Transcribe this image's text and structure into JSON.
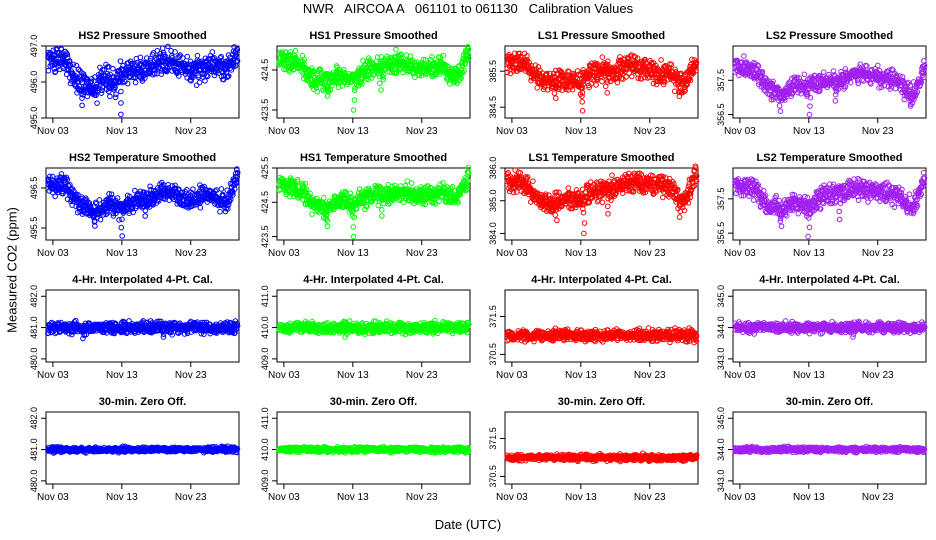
{
  "figure": {
    "title": "NWR   AIRCOA A   061101 to 061130   Calibration Values",
    "xlabel": "Date (UTC)",
    "ylabel": "Measured CO2 (ppm)"
  },
  "colors": {
    "HS2": "#0000ff",
    "HS1": "#00ff00",
    "LS1": "#ff0000",
    "LS2": "#a020f0"
  },
  "chart_data": [
    {
      "type": "scatter",
      "row": 0,
      "col": 0,
      "title": "HS2 Pressure Smoothed",
      "color_key": "HS2",
      "xlim": [
        2,
        30
      ],
      "ylim": [
        495,
        497
      ],
      "yticks": [
        "495.0",
        "496.0",
        "497.0"
      ],
      "x_ticks": [
        {
          "value": 3,
          "label": "Nov 03"
        },
        {
          "value": 13,
          "label": "Nov 13"
        },
        {
          "value": 23,
          "label": "Nov 23"
        }
      ],
      "center": 496.3,
      "noise": 0.25,
      "x_range": [
        2.3,
        29.8
      ],
      "anchors": [
        [
          2.3,
          496.7
        ],
        [
          5,
          496.6
        ],
        [
          6,
          496.1
        ],
        [
          7.5,
          496.0
        ],
        [
          9,
          495.8
        ],
        [
          10.5,
          496.1
        ],
        [
          12,
          496.0
        ],
        [
          13.5,
          496.3
        ],
        [
          16,
          496.3
        ],
        [
          18,
          496.5
        ],
        [
          20,
          496.6
        ],
        [
          23,
          496.3
        ],
        [
          26,
          496.5
        ],
        [
          28,
          496.3
        ],
        [
          29.8,
          496.8
        ]
      ],
      "dips": [
        [
          7.2,
          495.35
        ],
        [
          12.8,
          495.1
        ],
        [
          11.2,
          495.6
        ]
      ]
    },
    {
      "type": "scatter",
      "row": 0,
      "col": 1,
      "title": "HS1 Pressure Smoothed",
      "color_key": "HS1",
      "xlim": [
        2,
        30
      ],
      "ylim": [
        423.3,
        425.1
      ],
      "yticks": [
        "423.5",
        "424.5"
      ],
      "x_ticks": [
        {
          "value": 3,
          "label": "Nov 03"
        },
        {
          "value": 13,
          "label": "Nov 13"
        },
        {
          "value": 23,
          "label": "Nov 23"
        }
      ],
      "center": 424.5,
      "noise": 0.2,
      "x_range": [
        2.3,
        29.8
      ],
      "anchors": [
        [
          2.3,
          424.8
        ],
        [
          5,
          424.7
        ],
        [
          7,
          424.3
        ],
        [
          9,
          424.2
        ],
        [
          11,
          424.4
        ],
        [
          13,
          424.3
        ],
        [
          15,
          424.5
        ],
        [
          18,
          424.6
        ],
        [
          20,
          424.7
        ],
        [
          23,
          424.5
        ],
        [
          26,
          424.6
        ],
        [
          28,
          424.3
        ],
        [
          29.8,
          424.9
        ]
      ],
      "dips": [
        [
          9.3,
          423.85
        ],
        [
          13.2,
          423.5
        ],
        [
          17,
          424.0
        ]
      ]
    },
    {
      "type": "scatter",
      "row": 0,
      "col": 2,
      "title": "LS1 Pressure Smoothed",
      "color_key": "LS1",
      "xlim": [
        2,
        30
      ],
      "ylim": [
        384.2,
        386.2
      ],
      "yticks": [
        "384.5",
        "385.5"
      ],
      "x_ticks": [
        {
          "value": 3,
          "label": "Nov 03"
        },
        {
          "value": 13,
          "label": "Nov 13"
        },
        {
          "value": 23,
          "label": "Nov 23"
        }
      ],
      "center": 385.4,
      "noise": 0.22,
      "x_range": [
        2.3,
        29.8
      ],
      "anchors": [
        [
          2.3,
          385.8
        ],
        [
          5,
          385.7
        ],
        [
          7,
          385.3
        ],
        [
          9,
          385.2
        ],
        [
          11,
          385.3
        ],
        [
          13,
          385.2
        ],
        [
          15,
          385.5
        ],
        [
          18,
          385.5
        ],
        [
          20,
          385.7
        ],
        [
          23,
          385.5
        ],
        [
          26,
          385.4
        ],
        [
          28,
          385.1
        ],
        [
          29.8,
          385.8
        ]
      ],
      "dips": [
        [
          9.3,
          384.75
        ],
        [
          13.2,
          384.4
        ],
        [
          16.7,
          384.9
        ],
        [
          27.4,
          384.8
        ]
      ]
    },
    {
      "type": "scatter",
      "row": 0,
      "col": 3,
      "title": "LS2 Pressure Smoothed",
      "color_key": "LS2",
      "xlim": [
        2,
        30
      ],
      "ylim": [
        356.4,
        358.5
      ],
      "yticks": [
        "356.5",
        "357.5"
      ],
      "x_ticks": [
        {
          "value": 3,
          "label": "Nov 03"
        },
        {
          "value": 13,
          "label": "Nov 13"
        },
        {
          "value": 23,
          "label": "Nov 23"
        }
      ],
      "center": 357.5,
      "noise": 0.2,
      "x_range": [
        2.3,
        29.8
      ],
      "anchors": [
        [
          2.3,
          357.9
        ],
        [
          5,
          357.8
        ],
        [
          7,
          357.3
        ],
        [
          9,
          357.1
        ],
        [
          11,
          357.4
        ],
        [
          13,
          357.3
        ],
        [
          15,
          357.5
        ],
        [
          18,
          357.5
        ],
        [
          20,
          357.7
        ],
        [
          23,
          357.6
        ],
        [
          26,
          357.5
        ],
        [
          28,
          357.0
        ],
        [
          29.8,
          357.9
        ]
      ],
      "dips": [
        [
          8.8,
          356.6
        ],
        [
          13.2,
          356.5
        ],
        [
          17,
          356.9
        ],
        [
          27.7,
          356.9
        ]
      ]
    },
    {
      "type": "scatter",
      "row": 1,
      "col": 0,
      "title": "HS2 Temperature Smoothed",
      "color_key": "HS2",
      "xlim": [
        2,
        30
      ],
      "ylim": [
        495.2,
        497.0
      ],
      "yticks": [
        "495.5",
        "496.5"
      ],
      "x_ticks": [
        {
          "value": 3,
          "label": "Nov 03"
        },
        {
          "value": 13,
          "label": "Nov 13"
        },
        {
          "value": 23,
          "label": "Nov 23"
        }
      ],
      "center": 496.2,
      "noise": 0.18,
      "x_range": [
        2.3,
        29.8
      ],
      "anchors": [
        [
          2.3,
          496.6
        ],
        [
          5,
          496.5
        ],
        [
          7,
          496.1
        ],
        [
          9,
          495.9
        ],
        [
          11,
          496.1
        ],
        [
          13,
          496.0
        ],
        [
          15,
          496.2
        ],
        [
          18,
          496.3
        ],
        [
          20,
          496.4
        ],
        [
          23,
          496.2
        ],
        [
          26,
          496.3
        ],
        [
          28,
          496.1
        ],
        [
          29.8,
          496.8
        ]
      ],
      "dips": [
        [
          9,
          495.55
        ],
        [
          13,
          495.3
        ],
        [
          16.5,
          495.8
        ]
      ]
    },
    {
      "type": "scatter",
      "row": 1,
      "col": 1,
      "title": "HS1 Temperature Smoothed",
      "color_key": "HS1",
      "xlim": [
        2,
        30
      ],
      "ylim": [
        423.4,
        425.5
      ],
      "yticks": [
        "423.5",
        "424.5",
        "425.5"
      ],
      "x_ticks": [
        {
          "value": 3,
          "label": "Nov 03"
        },
        {
          "value": 13,
          "label": "Nov 13"
        },
        {
          "value": 23,
          "label": "Nov 23"
        }
      ],
      "center": 424.7,
      "noise": 0.2,
      "x_range": [
        2.3,
        29.8
      ],
      "anchors": [
        [
          2.3,
          425.0
        ],
        [
          5,
          424.9
        ],
        [
          7,
          424.5
        ],
        [
          9,
          424.3
        ],
        [
          11,
          424.6
        ],
        [
          13,
          424.4
        ],
        [
          15,
          424.7
        ],
        [
          18,
          424.7
        ],
        [
          20,
          424.8
        ],
        [
          23,
          424.7
        ],
        [
          26,
          424.8
        ],
        [
          28,
          424.6
        ],
        [
          29.8,
          425.2
        ]
      ],
      "dips": [
        [
          9.2,
          423.8
        ],
        [
          13.2,
          423.5
        ],
        [
          17.3,
          424.1
        ]
      ]
    },
    {
      "type": "scatter",
      "row": 1,
      "col": 2,
      "title": "LS1 Temperature Smoothed",
      "color_key": "LS1",
      "xlim": [
        2,
        30
      ],
      "ylim": [
        383.8,
        386.0
      ],
      "yticks": [
        "384.0",
        "385.0",
        "386.0"
      ],
      "x_ticks": [
        {
          "value": 3,
          "label": "Nov 03"
        },
        {
          "value": 13,
          "label": "Nov 13"
        },
        {
          "value": 23,
          "label": "Nov 23"
        }
      ],
      "center": 385.2,
      "noise": 0.22,
      "x_range": [
        2.3,
        29.8
      ],
      "anchors": [
        [
          2.3,
          385.6
        ],
        [
          5,
          385.5
        ],
        [
          7,
          385.0
        ],
        [
          9,
          384.9
        ],
        [
          11,
          385.1
        ],
        [
          13,
          385.0
        ],
        [
          15,
          385.3
        ],
        [
          18,
          385.4
        ],
        [
          20,
          385.6
        ],
        [
          23,
          385.5
        ],
        [
          26,
          385.4
        ],
        [
          28,
          384.9
        ],
        [
          29.8,
          385.8
        ]
      ],
      "dips": [
        [
          9.4,
          384.4
        ],
        [
          13.4,
          384.0
        ],
        [
          17,
          384.6
        ],
        [
          27.3,
          384.5
        ]
      ]
    },
    {
      "type": "scatter",
      "row": 1,
      "col": 3,
      "title": "LS2 Temperature Smoothed",
      "color_key": "LS2",
      "xlim": [
        2,
        30
      ],
      "ylim": [
        356.3,
        358.4
      ],
      "yticks": [
        "356.5",
        "357.5"
      ],
      "x_ticks": [
        {
          "value": 3,
          "label": "Nov 03"
        },
        {
          "value": 13,
          "label": "Nov 13"
        },
        {
          "value": 23,
          "label": "Nov 23"
        }
      ],
      "center": 357.5,
      "noise": 0.2,
      "x_range": [
        2.3,
        29.8
      ],
      "anchors": [
        [
          2.3,
          357.9
        ],
        [
          5,
          357.8
        ],
        [
          7,
          357.3
        ],
        [
          9,
          357.2
        ],
        [
          11,
          357.4
        ],
        [
          13,
          357.3
        ],
        [
          15,
          357.6
        ],
        [
          18,
          357.7
        ],
        [
          20,
          357.8
        ],
        [
          23,
          357.7
        ],
        [
          26,
          357.6
        ],
        [
          28,
          357.2
        ],
        [
          29.8,
          358.1
        ]
      ],
      "dips": [
        [
          8.9,
          356.7
        ],
        [
          13,
          356.4
        ],
        [
          17.5,
          356.9
        ]
      ]
    },
    {
      "type": "scatter",
      "row": 2,
      "col": 0,
      "title": "4-Hr. Interpolated 4-Pt. Cal.",
      "color_key": "HS2",
      "xlim": [
        2,
        30
      ],
      "ylim": [
        479.9,
        482.2
      ],
      "yticks": [
        "480.0",
        "481.0",
        "482.0"
      ],
      "x_ticks": [
        {
          "value": 3,
          "label": "Nov 03"
        },
        {
          "value": 13,
          "label": "Nov 13"
        },
        {
          "value": 23,
          "label": "Nov 23"
        }
      ],
      "center": 481.0,
      "noise": 0.13,
      "x_range": [
        2.3,
        29.8
      ],
      "anchors": [],
      "dips": [
        [
          7.5,
          480.65
        ],
        [
          19,
          480.7
        ]
      ]
    },
    {
      "type": "scatter",
      "row": 2,
      "col": 1,
      "title": "4-Hr. Interpolated 4-Pt. Cal.",
      "color_key": "HS1",
      "xlim": [
        2,
        30
      ],
      "ylim": [
        408.9,
        411.2
      ],
      "yticks": [
        "409.0",
        "410.0",
        "411.0"
      ],
      "x_ticks": [
        {
          "value": 3,
          "label": "Nov 03"
        },
        {
          "value": 13,
          "label": "Nov 13"
        },
        {
          "value": 23,
          "label": "Nov 23"
        }
      ],
      "center": 410.0,
      "noise": 0.13,
      "x_range": [
        2.3,
        29.8
      ],
      "anchors": [],
      "dips": [
        [
          12,
          409.7
        ]
      ]
    },
    {
      "type": "scatter",
      "row": 2,
      "col": 2,
      "title": "4-Hr. Interpolated 4-Pt. Cal.",
      "color_key": "LS1",
      "xlim": [
        2,
        30
      ],
      "ylim": [
        370.3,
        372.2
      ],
      "yticks": [
        "370.5",
        "371.5"
      ],
      "x_ticks": [
        {
          "value": 3,
          "label": "Nov 03"
        },
        {
          "value": 13,
          "label": "Nov 13"
        },
        {
          "value": 23,
          "label": "Nov 23"
        }
      ],
      "center": 371.0,
      "noise": 0.11,
      "x_range": [
        2.3,
        29.8
      ],
      "anchors": [],
      "dips": []
    },
    {
      "type": "scatter",
      "row": 2,
      "col": 3,
      "title": "4-Hr. Interpolated 4-Pt. Cal.",
      "color_key": "LS2",
      "xlim": [
        2,
        30
      ],
      "ylim": [
        342.9,
        345.2
      ],
      "yticks": [
        "343.0",
        "344.0",
        "345.0"
      ],
      "x_ticks": [
        {
          "value": 3,
          "label": "Nov 03"
        },
        {
          "value": 13,
          "label": "Nov 13"
        },
        {
          "value": 23,
          "label": "Nov 23"
        }
      ],
      "center": 344.0,
      "noise": 0.12,
      "x_range": [
        2.3,
        29.8
      ],
      "anchors": [],
      "dips": [
        [
          19.5,
          343.7
        ]
      ]
    },
    {
      "type": "scatter",
      "row": 3,
      "col": 0,
      "title": "30-min. Zero Off.",
      "color_key": "HS2",
      "xlim": [
        2,
        30
      ],
      "ylim": [
        479.9,
        482.2
      ],
      "yticks": [
        "480.0",
        "481.0",
        "482.0"
      ],
      "x_ticks": [
        {
          "value": 3,
          "label": "Nov 03"
        },
        {
          "value": 13,
          "label": "Nov 13"
        },
        {
          "value": 23,
          "label": "Nov 23"
        }
      ],
      "center": 481.0,
      "noise": 0.06,
      "x_range": [
        2.3,
        29.8
      ],
      "anchors": [],
      "dips": []
    },
    {
      "type": "scatter",
      "row": 3,
      "col": 1,
      "title": "30-min. Zero Off.",
      "color_key": "HS1",
      "xlim": [
        2,
        30
      ],
      "ylim": [
        408.9,
        411.2
      ],
      "yticks": [
        "409.0",
        "410.0",
        "411.0"
      ],
      "x_ticks": [
        {
          "value": 3,
          "label": "Nov 03"
        },
        {
          "value": 13,
          "label": "Nov 13"
        },
        {
          "value": 23,
          "label": "Nov 23"
        }
      ],
      "center": 410.0,
      "noise": 0.06,
      "x_range": [
        2.3,
        29.8
      ],
      "anchors": [],
      "dips": []
    },
    {
      "type": "scatter",
      "row": 3,
      "col": 2,
      "title": "30-min. Zero Off.",
      "color_key": "LS1",
      "xlim": [
        2,
        30
      ],
      "ylim": [
        370.3,
        372.2
      ],
      "yticks": [
        "370.5",
        "371.5"
      ],
      "x_ticks": [
        {
          "value": 3,
          "label": "Nov 03"
        },
        {
          "value": 13,
          "label": "Nov 13"
        },
        {
          "value": 23,
          "label": "Nov 23"
        }
      ],
      "center": 371.0,
      "noise": 0.06,
      "x_range": [
        2.3,
        29.8
      ],
      "anchors": [],
      "dips": []
    },
    {
      "type": "scatter",
      "row": 3,
      "col": 3,
      "title": "30-min. Zero Off.",
      "color_key": "LS2",
      "xlim": [
        2,
        30
      ],
      "ylim": [
        342.9,
        345.2
      ],
      "yticks": [
        "343.0",
        "344.0",
        "345.0"
      ],
      "x_ticks": [
        {
          "value": 3,
          "label": "Nov 03"
        },
        {
          "value": 13,
          "label": "Nov 13"
        },
        {
          "value": 23,
          "label": "Nov 23"
        }
      ],
      "center": 344.0,
      "noise": 0.06,
      "x_range": [
        2.3,
        29.8
      ],
      "anchors": [],
      "dips": []
    }
  ]
}
